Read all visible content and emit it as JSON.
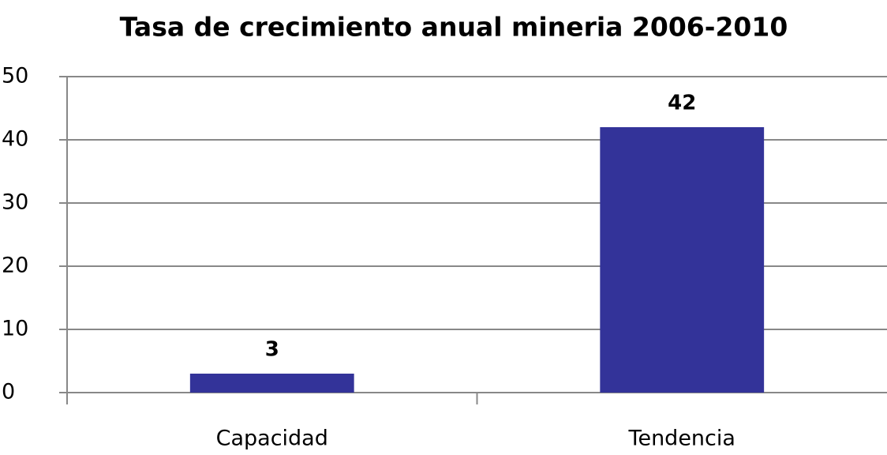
{
  "chart_data": {
    "type": "bar",
    "title": "Tasa de crecimiento anual mineria 2006-2010",
    "categories": [
      "Capacidad",
      "Tendencia"
    ],
    "values": [
      3,
      42
    ],
    "color": "#333399",
    "ylim": [
      0,
      50
    ],
    "yticks": [
      0,
      10,
      20,
      30,
      40,
      50
    ],
    "grid": true
  }
}
